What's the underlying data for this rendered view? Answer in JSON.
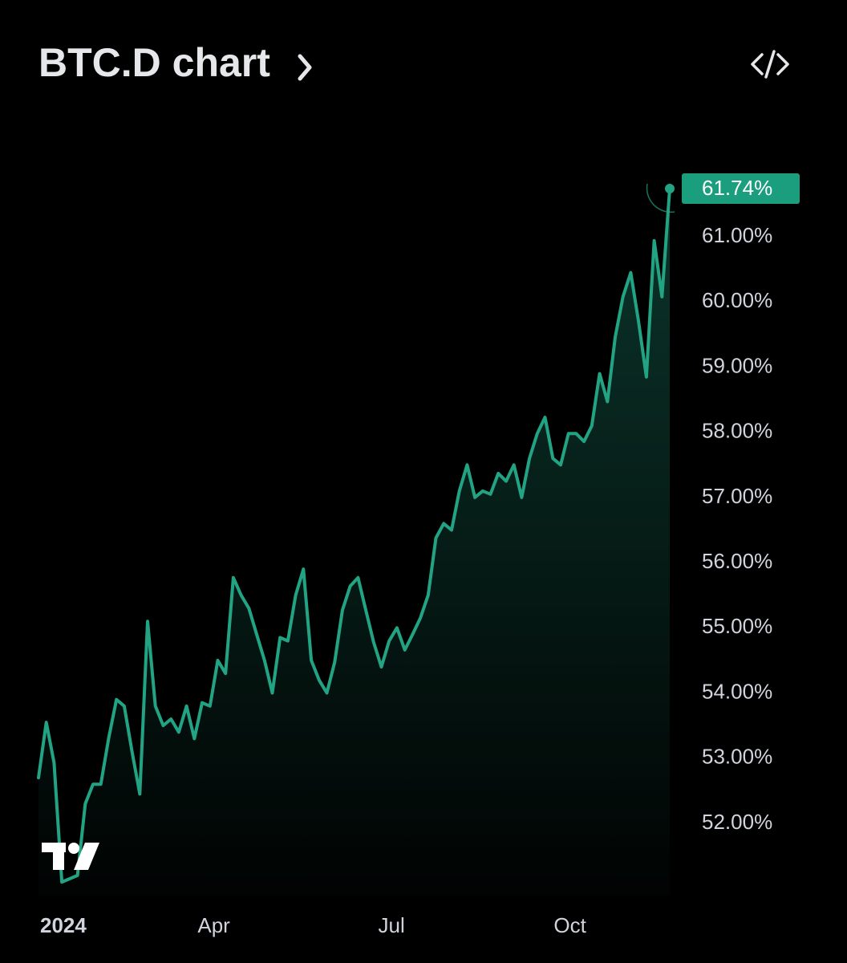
{
  "chart_data": {
    "type": "line",
    "title": "BTC.D chart",
    "series": [
      {
        "name": "BTC.D",
        "color": "#22a484",
        "values": [
          52.7,
          53.55,
          52.93,
          51.1,
          51.15,
          51.2,
          52.3,
          52.6,
          52.6,
          53.3,
          53.9,
          53.8,
          53.1,
          52.45,
          55.1,
          53.8,
          53.5,
          53.6,
          53.4,
          53.8,
          53.3,
          53.85,
          53.8,
          54.5,
          54.3,
          55.77,
          55.5,
          55.3,
          54.9,
          54.5,
          54.0,
          54.85,
          54.8,
          55.5,
          55.9,
          54.5,
          54.2,
          54.0,
          54.47,
          55.27,
          55.64,
          55.77,
          55.27,
          54.78,
          54.4,
          54.8,
          55.0,
          54.66,
          54.9,
          55.15,
          55.5,
          56.38,
          56.6,
          56.5,
          57.1,
          57.5,
          57.0,
          57.1,
          57.05,
          57.37,
          57.25,
          57.5,
          57.0,
          57.6,
          57.98,
          58.23,
          57.6,
          57.5,
          57.98,
          57.98,
          57.86,
          58.1,
          58.9,
          58.47,
          59.46,
          60.08,
          60.45,
          59.7,
          58.85,
          60.94,
          60.08,
          61.74
        ]
      }
    ],
    "price_label": {
      "value": 61.74,
      "label": "61.74%"
    },
    "xlim": [
      0,
      81
    ],
    "xticks": [
      {
        "value": 0,
        "label": "2024"
      },
      {
        "value": 22.5,
        "label": "Apr"
      },
      {
        "value": 45.3,
        "label": "Jul"
      },
      {
        "value": 68.2,
        "label": "Oct"
      }
    ],
    "ylim": [
      50.9,
      62.2
    ],
    "yticks": [
      {
        "value": 52,
        "label": "52.00%"
      },
      {
        "value": 53,
        "label": "53.00%"
      },
      {
        "value": 54,
        "label": "54.00%"
      },
      {
        "value": 55,
        "label": "55.00%"
      },
      {
        "value": 56,
        "label": "56.00%"
      },
      {
        "value": 57,
        "label": "57.00%"
      },
      {
        "value": 58,
        "label": "58.00%"
      },
      {
        "value": 59,
        "label": "59.00%"
      },
      {
        "value": 60,
        "label": "60.00%"
      },
      {
        "value": 61,
        "label": "61.00%"
      }
    ],
    "grid": false
  }
}
